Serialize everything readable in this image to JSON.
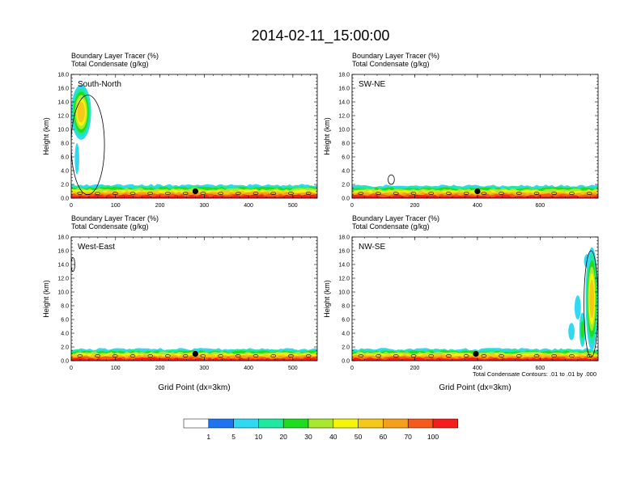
{
  "figure": {
    "title": "2014-02-11_15:00:00",
    "contour_note": "Total Condensate Contours: .01 to .01 by .000"
  },
  "colors": {
    "scale": [
      "#ffffff",
      "#1e74f0",
      "#30d8f2",
      "#1fe9a0",
      "#1edc1e",
      "#a8e830",
      "#f5f50a",
      "#f5c81c",
      "#f5a01c",
      "#f55a1c",
      "#f51c1c"
    ],
    "contour": "#000000"
  },
  "colorbar": {
    "labels": [
      "1",
      "5",
      "10",
      "20",
      "30",
      "40",
      "50",
      "60",
      "70",
      "100"
    ]
  },
  "chart_data": [
    {
      "type": "heatmap",
      "panel_label": "South-North",
      "title_lines": [
        "Boundary Layer Tracer   (%)",
        "Total Condensate   (g/kg)"
      ],
      "xlabel": "",
      "ylabel": "Height (km)",
      "xlim": [
        0,
        555
      ],
      "ylim": [
        0,
        18
      ],
      "xticks": [
        0,
        100,
        200,
        300,
        400,
        500
      ],
      "yticks": [
        0.0,
        2.0,
        4.0,
        6.0,
        8.0,
        10.0,
        12.0,
        14.0,
        16.0,
        18.0
      ],
      "marker_x": 280,
      "boundary_layer_top_km": 1.9,
      "plumes": [
        {
          "x": [
            0,
            45
          ],
          "height_km": [
            8.5,
            16.5
          ],
          "peak_level": "50"
        },
        {
          "x": [
            8,
            18
          ],
          "height_km": [
            3.5,
            8.0
          ],
          "peak_level": "5"
        }
      ],
      "condensate_contours": [
        {
          "x": [
            0,
            75
          ],
          "height_km": [
            0.5,
            15.0
          ]
        }
      ]
    },
    {
      "type": "heatmap",
      "panel_label": "SW-NE",
      "title_lines": [
        "Boundary Layer Tracer   (%)",
        "Total Condensate   (g/kg)"
      ],
      "xlabel": "",
      "ylabel": "Height (km)",
      "xlim": [
        0,
        785
      ],
      "ylim": [
        0,
        18
      ],
      "xticks": [
        0,
        200,
        400,
        600
      ],
      "yticks": [
        0.0,
        2.0,
        4.0,
        6.0,
        8.0,
        10.0,
        12.0,
        14.0,
        16.0,
        18.0
      ],
      "marker_x": 400,
      "boundary_layer_top_km": 1.8,
      "plumes": [],
      "condensate_contours": [
        {
          "x": [
            115,
            135
          ],
          "height_km": [
            2.0,
            3.4
          ]
        }
      ]
    },
    {
      "type": "heatmap",
      "panel_label": "West-East",
      "title_lines": [
        "Boundary Layer Tracer   (%)",
        "Total Condensate   (g/kg)"
      ],
      "xlabel": "Grid Point (dx=3km)",
      "ylabel": "Height (km)",
      "xlim": [
        0,
        555
      ],
      "ylim": [
        0,
        18
      ],
      "xticks": [
        0,
        100,
        200,
        300,
        400,
        500
      ],
      "yticks": [
        0.0,
        2.0,
        4.0,
        6.0,
        8.0,
        10.0,
        12.0,
        14.0,
        16.0,
        18.0
      ],
      "marker_x": 280,
      "boundary_layer_top_km": 1.7,
      "plumes": [],
      "condensate_contours": [
        {
          "x": [
            0,
            8
          ],
          "height_km": [
            13.0,
            15.0
          ]
        }
      ]
    },
    {
      "type": "heatmap",
      "panel_label": "NW-SE",
      "title_lines": [
        "Boundary Layer Tracer   (%)",
        "Total Condensate   (g/kg)"
      ],
      "xlabel": "Grid Point (dx=3km)",
      "ylabel": "Height (km)",
      "xlim": [
        0,
        785
      ],
      "ylim": [
        0,
        18
      ],
      "xticks": [
        0,
        200,
        400,
        600
      ],
      "yticks": [
        0.0,
        2.0,
        4.0,
        6.0,
        8.0,
        10.0,
        12.0,
        14.0,
        16.0,
        18.0
      ],
      "marker_x": 395,
      "boundary_layer_top_km": 1.7,
      "plumes": [
        {
          "x": [
            745,
            785
          ],
          "height_km": [
            1.5,
            16.5
          ],
          "peak_level": "50"
        },
        {
          "x": [
            725,
            745
          ],
          "height_km": [
            2.0,
            7.0
          ],
          "peak_level": "20"
        },
        {
          "x": [
            690,
            710
          ],
          "height_km": [
            3.0,
            5.5
          ],
          "peak_level": "5"
        },
        {
          "x": [
            710,
            730
          ],
          "height_km": [
            6.0,
            9.5
          ],
          "peak_level": "5"
        },
        {
          "x": [
            740,
            760
          ],
          "height_km": [
            13.5,
            15.5
          ],
          "peak_level": "5"
        }
      ],
      "condensate_contours": [
        {
          "x": [
            740,
            785
          ],
          "height_km": [
            0.5,
            16.0
          ]
        }
      ]
    }
  ]
}
